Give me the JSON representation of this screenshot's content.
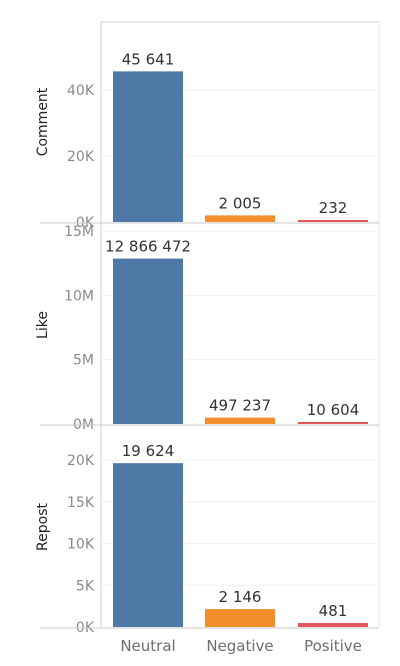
{
  "chart_data": {
    "type": "bar",
    "categories": [
      "Neutral",
      "Negative",
      "Positive"
    ],
    "colors": [
      "#4e79a7",
      "#f28e2b",
      "#e15759"
    ],
    "panels": [
      {
        "ylabel": "Comment",
        "values": [
          45641,
          2005,
          232
        ],
        "value_labels": [
          "45 641",
          "2 005",
          "232"
        ],
        "ylim": [
          0,
          50000
        ],
        "ticks": [
          0,
          20000,
          40000
        ],
        "tick_labels": [
          "0K",
          "20K",
          "40K"
        ]
      },
      {
        "ylabel": "Like",
        "values": [
          12866472,
          497237,
          10604
        ],
        "value_labels": [
          "12 866 472",
          "497 237",
          "10 604"
        ],
        "ylim": [
          0,
          15400000
        ],
        "ticks": [
          0,
          5000000,
          10000000,
          15000000
        ],
        "tick_labels": [
          "0M",
          "5M",
          "10M",
          "15M"
        ]
      },
      {
        "ylabel": "Repost",
        "values": [
          19624,
          2146,
          481
        ],
        "value_labels": [
          "19 624",
          "2 146",
          "481"
        ],
        "ylim": [
          0,
          21800
        ],
        "ticks": [
          0,
          5000,
          10000,
          15000,
          20000
        ],
        "tick_labels": [
          "0K",
          "5K",
          "10K",
          "15K",
          "20K"
        ]
      }
    ],
    "grid": true
  }
}
